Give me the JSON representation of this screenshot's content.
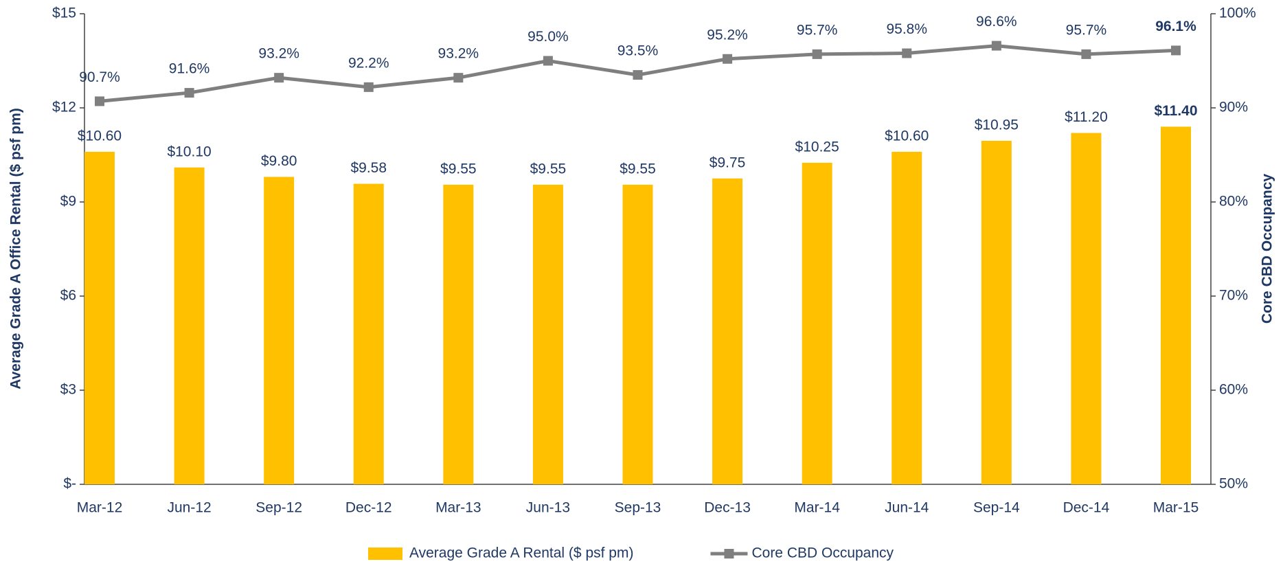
{
  "chart_data": {
    "type": "bar",
    "y_label": "Average Grade A Office Rental ($ psf pm)",
    "y2_label": "Core CBD Occupancy",
    "categories": [
      "Mar-12",
      "Jun-12",
      "Sep-12",
      "Dec-12",
      "Mar-13",
      "Jun-13",
      "Sep-13",
      "Dec-13",
      "Mar-14",
      "Jun-14",
      "Sep-14",
      "Dec-14",
      "Mar-15"
    ],
    "series": [
      {
        "name": "Average Grade A Rental ($ psf pm)",
        "type": "bar",
        "color": "#ffc000",
        "values": [
          10.6,
          10.1,
          9.8,
          9.58,
          9.55,
          9.55,
          9.55,
          9.75,
          10.25,
          10.6,
          10.95,
          11.2,
          11.4
        ],
        "value_labels": [
          "$10.60",
          "$10.10",
          "$9.80",
          "$9.58",
          "$9.55",
          "$9.55",
          "$9.55",
          "$9.75",
          "$10.25",
          "$10.60",
          "$10.95",
          "$11.20",
          "$11.40"
        ],
        "value_label_colors": [
          "#1f3864",
          "#1f3864",
          "#1f3864",
          "#1f3864",
          "#1f3864",
          "#1f3864",
          "#1f3864",
          "#1f3864",
          "#1f3864",
          "#1f3864",
          "#1f3864",
          "#1f3864",
          "#00b050"
        ]
      },
      {
        "name": "Core CBD Occupancy",
        "type": "line",
        "axis": "y2",
        "color": "#7f7f7f",
        "values": [
          90.7,
          91.6,
          93.2,
          92.2,
          93.2,
          95.0,
          93.5,
          95.2,
          95.7,
          95.8,
          96.6,
          95.7,
          96.1
        ],
        "value_labels": [
          "90.7%",
          "91.6%",
          "93.2%",
          "92.2%",
          "93.2%",
          "95.0%",
          "93.5%",
          "95.2%",
          "95.7%",
          "95.8%",
          "96.6%",
          "95.7%",
          "96.1%"
        ],
        "value_label_colors": [
          "#1f3864",
          "#1f3864",
          "#1f3864",
          "#1f3864",
          "#1f3864",
          "#1f3864",
          "#1f3864",
          "#1f3864",
          "#1f3864",
          "#1f3864",
          "#1f3864",
          "#1f3864",
          "#00b050"
        ]
      }
    ],
    "ylim": [
      0,
      15
    ],
    "yticks": [
      {
        "value": 0,
        "label": "$-"
      },
      {
        "value": 3,
        "label": "$3"
      },
      {
        "value": 6,
        "label": "$6"
      },
      {
        "value": 9,
        "label": "$9"
      },
      {
        "value": 12,
        "label": "$12"
      },
      {
        "value": 15,
        "label": "$15"
      }
    ],
    "y2lim": [
      50,
      100
    ],
    "y2ticks": [
      {
        "value": 50,
        "label": "50%"
      },
      {
        "value": 60,
        "label": "60%"
      },
      {
        "value": 70,
        "label": "70%"
      },
      {
        "value": 80,
        "label": "80%"
      },
      {
        "value": 90,
        "label": "90%"
      },
      {
        "value": 100,
        "label": "100%"
      }
    ],
    "grid": false,
    "legend": "bottom"
  }
}
